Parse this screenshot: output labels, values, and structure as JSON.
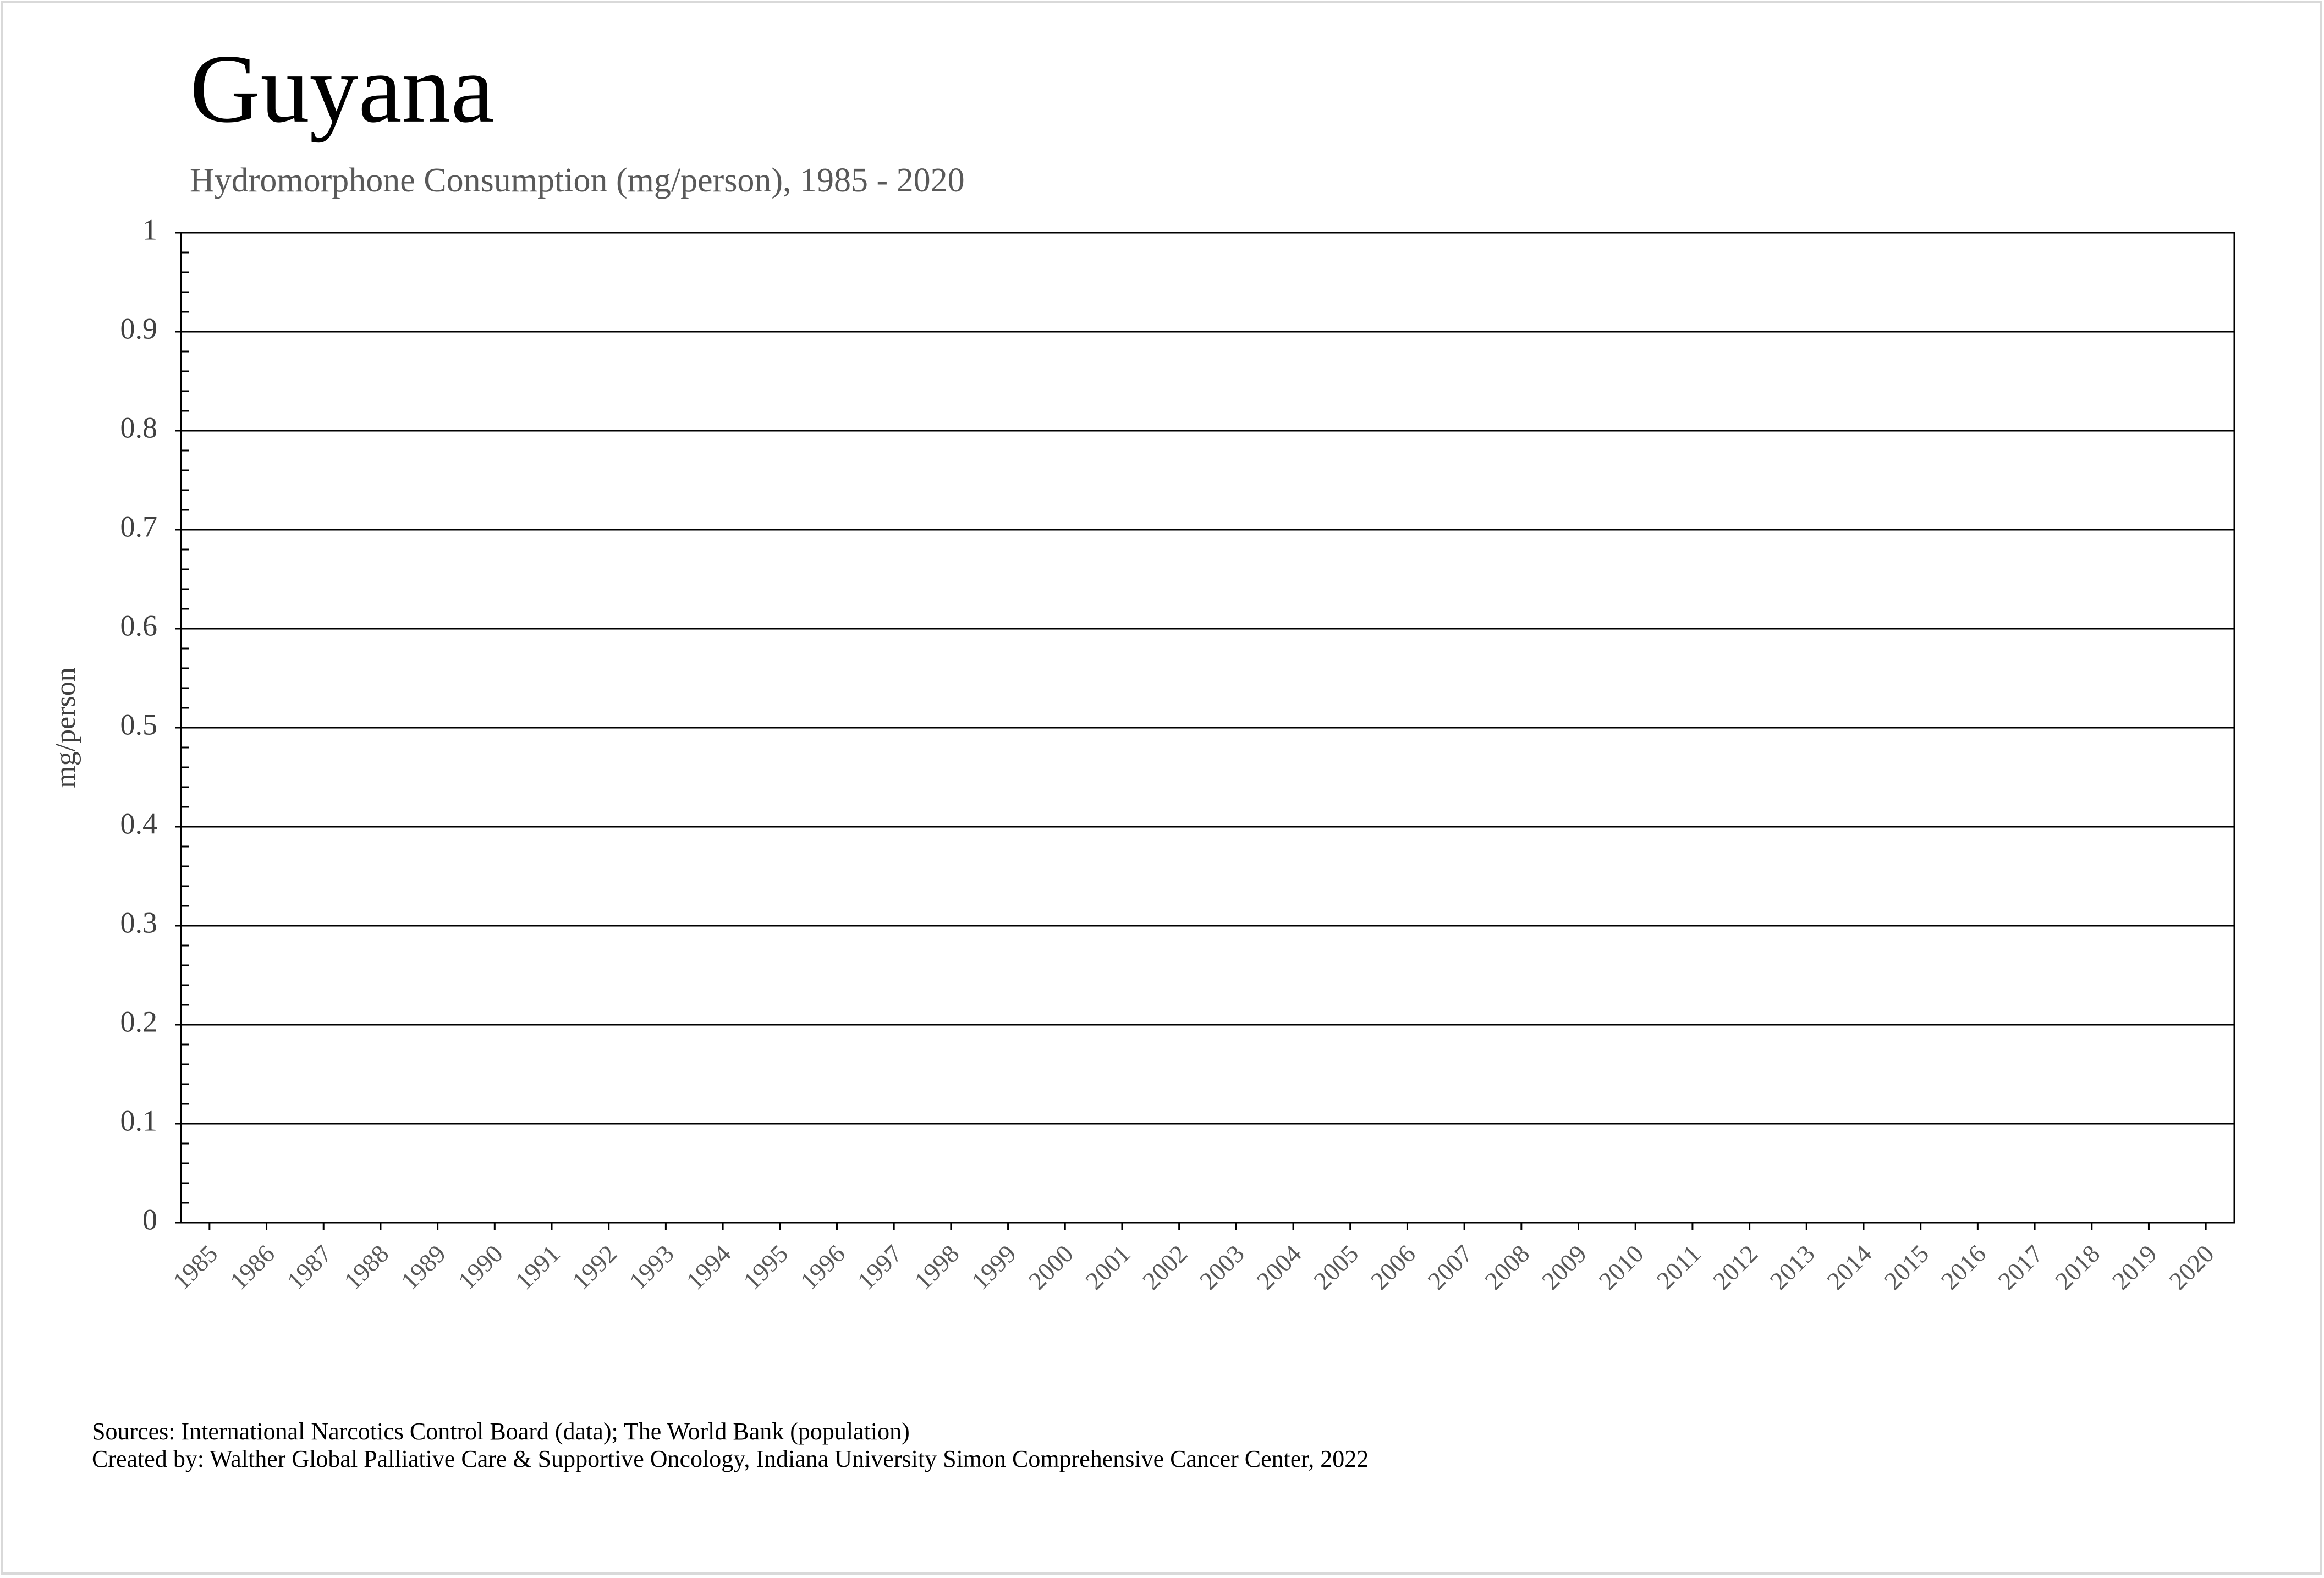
{
  "chart_data": {
    "type": "line",
    "title": "Guyana",
    "subtitle": "Hydromorphone Consumption (mg/person), 1985 - 2020",
    "y_label": "mg/person",
    "categories": [
      "1985",
      "1986",
      "1987",
      "1988",
      "1989",
      "1990",
      "1991",
      "1992",
      "1993",
      "1994",
      "1995",
      "1996",
      "1997",
      "1998",
      "1999",
      "2000",
      "2001",
      "2002",
      "2003",
      "2004",
      "2005",
      "2006",
      "2007",
      "2008",
      "2009",
      "2010",
      "2011",
      "2012",
      "2013",
      "2014",
      "2015",
      "2016",
      "2017",
      "2018",
      "2019",
      "2020"
    ],
    "values": [
      null,
      null,
      null,
      null,
      null,
      null,
      null,
      null,
      null,
      null,
      null,
      null,
      null,
      null,
      null,
      null,
      null,
      null,
      null,
      null,
      null,
      null,
      null,
      null,
      null,
      null,
      null,
      null,
      null,
      null,
      null,
      null,
      null,
      null,
      null,
      null
    ],
    "color": "#1f4e9c",
    "ylim": [
      0,
      1
    ],
    "yticks": [
      0,
      0.1,
      0.2,
      0.3,
      0.4,
      0.5,
      0.6,
      0.7,
      0.8,
      0.9,
      1
    ],
    "grid": true,
    "notes": [
      "Sources: International Narcotics Control Board (data); The World Bank (population)",
      "Created by: Walther Global Palliative Care & Supportive Oncology, Indiana University Simon Comprehensive Cancer Center, 2022"
    ]
  }
}
